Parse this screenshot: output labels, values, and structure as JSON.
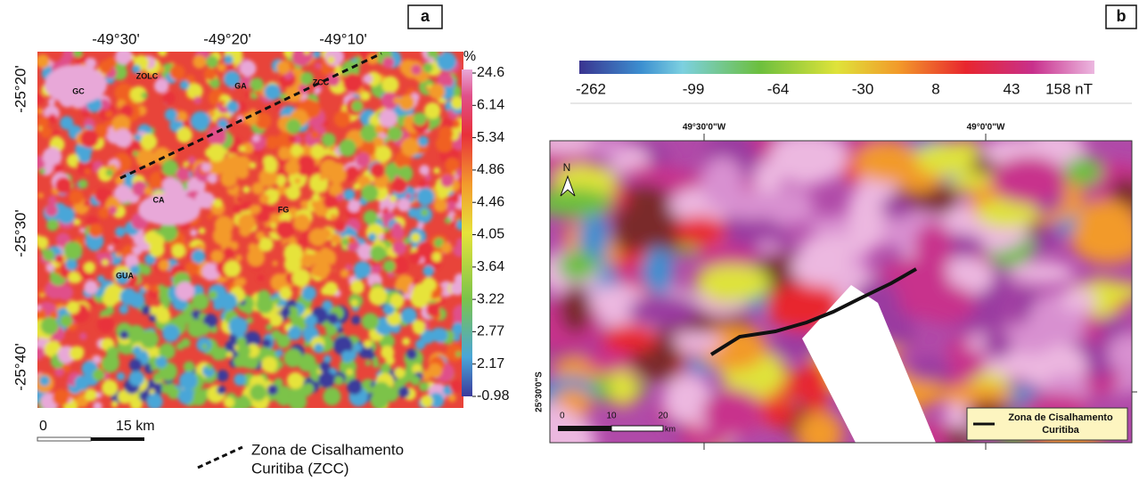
{
  "panel_a": {
    "label": "a",
    "lon_labels": [
      "-49°30'",
      "-49°20'",
      "-49°10'"
    ],
    "lat_labels": [
      "-25°20'",
      "-25°30'",
      "-25°40'"
    ],
    "unit": "%",
    "colorbar_labels": [
      "24.6",
      "6.14",
      "5.34",
      "4.86",
      "4.46",
      "4.05",
      "3.64",
      "3.22",
      "2.77",
      "2.17",
      "-0.98"
    ],
    "map_labels": [
      "GC",
      "ZOLC",
      "GA",
      "ZCC",
      "CA",
      "FG",
      "GUA"
    ],
    "scale_labels": [
      "0",
      "15 km"
    ],
    "legend": [
      "Zona de Cisalhamento",
      "Curitiba (ZCC)"
    ]
  },
  "panel_b": {
    "label": "b",
    "colorbar_labels": [
      "-262",
      "-99",
      "-64",
      "-30",
      "8",
      "43",
      "158 nT"
    ],
    "lon_labels": [
      "49°30'0\"W",
      "49°0'0\"W"
    ],
    "lat_label": "25°30'0\"S",
    "north": "N",
    "scale_labels": [
      "0",
      "10",
      "20",
      "km"
    ],
    "legend": [
      "Zona de Cisalhamento",
      "Curitiba"
    ]
  }
}
